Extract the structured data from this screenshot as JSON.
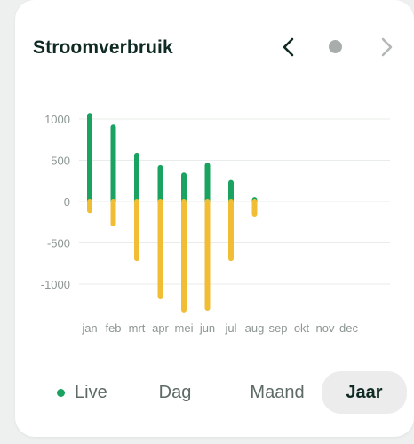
{
  "card": {
    "title": "Stroomverbruik"
  },
  "nav": {
    "prev_icon": "chevron-left-icon",
    "dot_icon": "dot-icon",
    "next_icon": "chevron-right-icon"
  },
  "colors": {
    "usage": "#1aa260",
    "return": "#f0bd35",
    "grid": "#e8ecea",
    "tick": "#8c9692",
    "live_dot": "#1aa260",
    "nav_active": "#0f2a22",
    "nav_inactive": "#b3b8b6",
    "dot": "#a8adab"
  },
  "tabs": [
    {
      "label": "Live",
      "active": false,
      "has_dot": true
    },
    {
      "label": "Dag",
      "active": false
    },
    {
      "label": "Maand",
      "active": false
    },
    {
      "label": "Jaar",
      "active": true
    }
  ],
  "chart_data": {
    "type": "bar",
    "y_ticks": [
      1000,
      500,
      0,
      -500,
      -1000
    ],
    "ylim": [
      -1400,
      1100
    ],
    "grid": true,
    "categories": [
      "jan",
      "feb",
      "mrt",
      "apr",
      "mei",
      "jun",
      "jul",
      "aug",
      "sep",
      "okt",
      "nov",
      "dec"
    ],
    "series": [
      {
        "values": [
          1040,
          900,
          560,
          410,
          320,
          440,
          230,
          20,
          null,
          null,
          null,
          null
        ]
      },
      {
        "values": [
          -110,
          -270,
          -690,
          -1150,
          -1310,
          -1290,
          -690,
          -150,
          null,
          null,
          null,
          null
        ]
      }
    ]
  }
}
